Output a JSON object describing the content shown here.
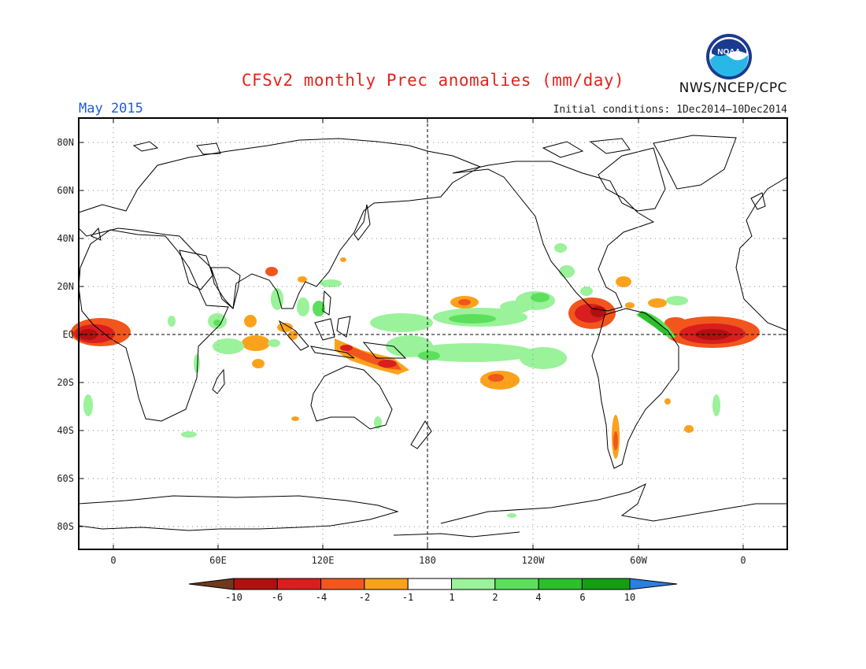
{
  "header": {
    "title": "CFSv2 monthly Prec anomalies (mm/day)",
    "month": "May 2015",
    "initial_conditions": "Initial conditions: 1Dec2014–10Dec2014",
    "agency": "NWS/NCEP/CPC",
    "logo_text": "NOAA"
  },
  "axes": {
    "lat_labels": [
      "80N",
      "60N",
      "40N",
      "20N",
      "EQ",
      "20S",
      "40S",
      "60S",
      "80S"
    ],
    "lon_labels": [
      "0",
      "60E",
      "120E",
      "180",
      "120W",
      "60W",
      "0"
    ]
  },
  "colorbar": {
    "labels": [
      "-10",
      "-6",
      "-4",
      "-2",
      "-1",
      "1",
      "2",
      "4",
      "6",
      "10"
    ],
    "colors": {
      "lt_m10": "#6e3a1e",
      "m10_m6": "#b01010",
      "m6_m4": "#d81e1e",
      "m4_m2": "#f2561c",
      "m2_m1": "#fba21c",
      "m1_1": "#ffffff",
      "1_2": "#9af29a",
      "2_4": "#5ce05c",
      "4_6": "#2cbf2c",
      "6_10": "#149e14",
      "gt_10": "#2a7fe0"
    }
  },
  "colors": {
    "title": "#e8211d",
    "month": "#1f5bd6",
    "coast": "#000000",
    "grid": "#888888"
  }
}
